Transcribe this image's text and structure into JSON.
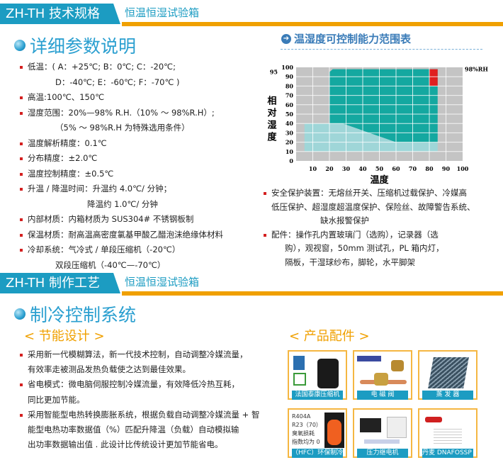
{
  "header1": {
    "tag": "ZH-TH 技术规格",
    "sub": "恒温恒湿试验箱"
  },
  "section1": {
    "title": "详细参数说明"
  },
  "specs": [
    {
      "text": "低温：( A：+25℃; B：0℃; C：-20℃;",
      "bullet": true
    },
    {
      "text": "D：-40℃; E：-60℃; F：-70℃ )",
      "indent": 1
    },
    {
      "text": "高温:100℃、150℃",
      "bullet": true
    },
    {
      "text": "湿度范围：20%—98% R.H.（10% ～ 98%R.H）;",
      "bullet": true
    },
    {
      "text": "（5% ～ 98%R.H 为特殊选用条件）",
      "indent": 1
    },
    {
      "text": "温度解析精度：0.1℃",
      "bullet": true
    },
    {
      "text": "分布精度：±2.0℃",
      "bullet": true
    },
    {
      "text": "温度控制精度：±0.5℃",
      "bullet": true
    },
    {
      "text": "升温 / 降温时间：升温约 4.0℃/ 分钟；",
      "bullet": true
    },
    {
      "text": "降温约 1.0℃/ 分钟",
      "indent": 2
    },
    {
      "text": "内部材质：内箱材质为 SUS304# 不锈钢板制",
      "bullet": true
    },
    {
      "text": "保温材质：耐高温高密度氯基甲酸乙醋泡沫绝缘体材料",
      "bullet": true
    },
    {
      "text": "冷却系统：气冷式 / 单段压缩机（-20℃）",
      "bullet": true
    },
    {
      "text": "双段压缩机（-40℃—-70℃）",
      "indent": 1
    }
  ],
  "chart_title": "温湿度可控制能力范围表",
  "chart_data": {
    "type": "area",
    "xlabel": "温度",
    "ylabel": "相对湿度",
    "xlim": [
      0,
      100
    ],
    "ylim": [
      0,
      100
    ],
    "x_ticks": [
      10,
      20,
      30,
      40,
      50,
      60,
      70,
      80,
      90,
      100
    ],
    "y_ticks": [
      0,
      10,
      20,
      30,
      40,
      50,
      60,
      70,
      80,
      90,
      95,
      100
    ],
    "grid": true,
    "annotation": "98%RH",
    "regions": [
      {
        "color": "#9fd6d8",
        "points": [
          [
            5,
            10
          ],
          [
            85,
            10
          ],
          [
            85,
            40
          ],
          [
            5,
            40
          ]
        ]
      },
      {
        "color": "#14a8a0",
        "points": [
          [
            20,
            40
          ],
          [
            28,
            40
          ],
          [
            60,
            20
          ],
          [
            85,
            20
          ],
          [
            85,
            98
          ],
          [
            22,
            98
          ],
          [
            20,
            95
          ]
        ]
      },
      {
        "color": "#e02020",
        "points": [
          [
            80,
            80
          ],
          [
            85,
            80
          ],
          [
            85,
            98
          ],
          [
            80,
            98
          ]
        ]
      }
    ]
  },
  "right_notes": [
    {
      "text": "安全保护装置：无熔丝开关、压缩机过载保护、冷媒高",
      "bullet": true
    },
    {
      "text": "低压保护、超湿度超温度保护、保险丝、故障警告系统、"
    },
    {
      "text": "缺水报警保护",
      "indent": 3
    },
    {
      "text": "配件：操作孔内置玻璃门（选购），记录器（选",
      "bullet": true
    },
    {
      "text": "购），观视窗，50mm 测试孔，PL 箱内灯，",
      "indent": 1
    },
    {
      "text": "隔板，干湿球纱布，脚轮，水平脚架",
      "indent": 1
    }
  ],
  "header2": {
    "tag": "ZH-TH 制作工艺",
    "sub": "恒温恒湿试验箱"
  },
  "section2": {
    "title": "制冷控制系统"
  },
  "energy_title": "< 节能设计 >",
  "parts_title": "< 产品配件 >",
  "energy": [
    {
      "text": "采用新一代模糊算法，新一代技术控制，自动调整冷媒流量，",
      "bullet": true
    },
    {
      "text": "有效率走被测品发热负载使之达到最佳效果。",
      "indent": 1
    },
    {
      "text": "省电模式：微电脑伺服控制冷媒流量，有效降低冷热互耗，",
      "bullet": true
    },
    {
      "text": "同比更加节能。",
      "indent": 1
    },
    {
      "text": "采用智能型电热转换膨胀系统，根据负载自动调整冷媒流量 + 智",
      "bullet": true
    },
    {
      "text": "能型电热功率数据值（%）匹配升降温（负载）自动模拟输",
      "indent": 1
    },
    {
      "text": "出功率数据输出值 . 此设计比传统设计更加节能省电。",
      "indent": 1
    }
  ],
  "parts": [
    {
      "label": "法国泰康压缩机",
      "image": "compressor"
    },
    {
      "label": "电 磁 阀",
      "image": "solenoid-valve"
    },
    {
      "label": "蒸 发 器",
      "image": "evaporator"
    },
    {
      "label": "（HFC）环保制冷剂",
      "image": "refrigerant",
      "lines": [
        "R404A",
        "R23（70）",
        "臭氧损耗",
        "指数均为 0"
      ]
    },
    {
      "label": "压力继电机",
      "image": "pressure-relay"
    },
    {
      "label": "丹麦 DNAFOSSP 品牌",
      "image": "danfoss"
    }
  ]
}
